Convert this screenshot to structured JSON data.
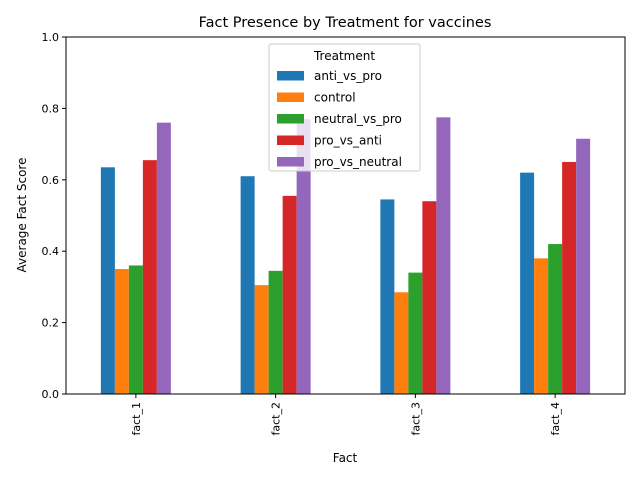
{
  "chart_data": {
    "type": "bar",
    "title": "Fact Presence by Treatment for vaccines",
    "xlabel": "Fact",
    "ylabel": "Average Fact Score",
    "ylim": [
      0,
      1.0
    ],
    "yticks": [
      "0.0",
      "0.2",
      "0.4",
      "0.6",
      "0.8",
      "1.0"
    ],
    "categories": [
      "fact_1",
      "fact_2",
      "fact_3",
      "fact_4"
    ],
    "series": [
      {
        "name": "anti_vs_pro",
        "color": "#1f77b4",
        "values": [
          0.635,
          0.61,
          0.545,
          0.62
        ]
      },
      {
        "name": "control",
        "color": "#ff7f0e",
        "values": [
          0.35,
          0.305,
          0.285,
          0.38
        ]
      },
      {
        "name": "neutral_vs_pro",
        "color": "#2ca02c",
        "values": [
          0.36,
          0.345,
          0.34,
          0.42
        ]
      },
      {
        "name": "pro_vs_anti",
        "color": "#d62728",
        "values": [
          0.655,
          0.555,
          0.54,
          0.65
        ]
      },
      {
        "name": "pro_vs_neutral",
        "color": "#9467bd",
        "values": [
          0.76,
          0.77,
          0.775,
          0.715
        ]
      }
    ],
    "legend": {
      "title": "Treatment",
      "position": "top-center"
    },
    "grid": false
  }
}
